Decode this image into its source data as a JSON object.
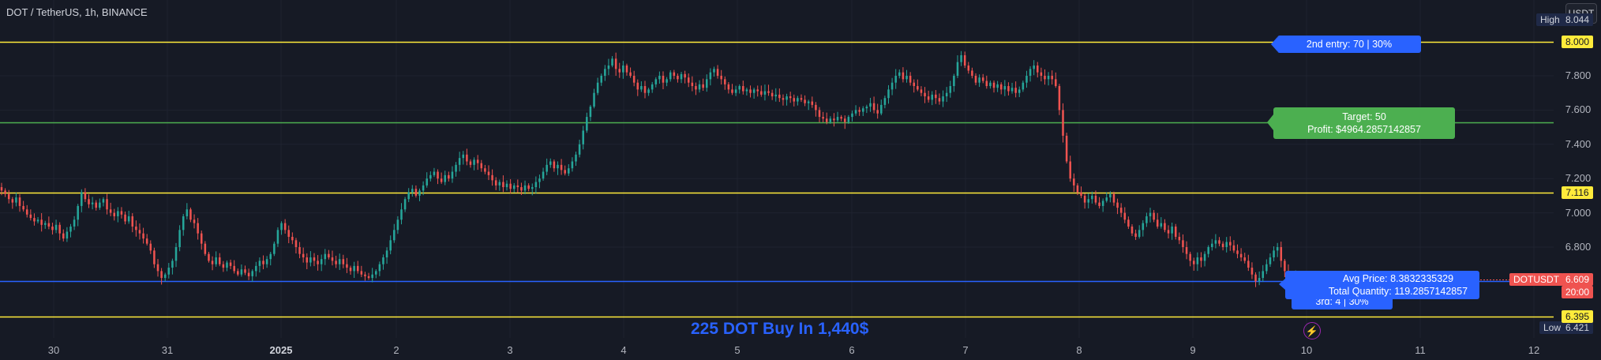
{
  "header": {
    "title": "DOT / TetherUS, 1h, BINANCE"
  },
  "currency_button": "USDT",
  "caption": "225 DOT Buy In 1,440$",
  "colors": {
    "background": "#161a25",
    "up": "#26a69a",
    "down": "#ef5350",
    "yellow": "#ffeb3b",
    "green": "#4caf50",
    "blue": "#2962ff"
  },
  "chart_data": {
    "type": "candlestick",
    "symbol": "DOT / TetherUS",
    "interval": "1h",
    "exchange": "BINANCE",
    "x_ticks": [
      "30",
      "31",
      "2025",
      "2",
      "3",
      "4",
      "5",
      "6",
      "7",
      "8",
      "9",
      "10",
      "11",
      "12"
    ],
    "y_ticks": [
      "7.800",
      "7.600",
      "7.400",
      "7.200",
      "7.000",
      "6.800"
    ],
    "ylim": [
      6.3,
      8.1
    ],
    "close_series": {
      "x_start": "2024-12-29 14:00",
      "step_hours": 1,
      "values": [
        7.13,
        7.11,
        7.08,
        7.06,
        7.09,
        7.04,
        7.02,
        6.99,
        6.97,
        6.95,
        6.96,
        6.93,
        6.94,
        6.92,
        6.9,
        6.93,
        6.88,
        6.85,
        6.89,
        6.92,
        6.96,
        7.04,
        7.12,
        7.08,
        7.05,
        7.06,
        7.03,
        7.06,
        7.08,
        7.02,
        7.0,
        6.98,
        7.01,
        6.99,
        6.95,
        6.98,
        6.92,
        6.9,
        6.88,
        6.85,
        6.82,
        6.78,
        6.7,
        6.66,
        6.62,
        6.64,
        6.68,
        6.72,
        6.8,
        6.9,
        6.98,
        7.02,
        6.96,
        6.94,
        6.88,
        6.82,
        6.76,
        6.72,
        6.7,
        6.74,
        6.7,
        6.68,
        6.71,
        6.69,
        6.66,
        6.64,
        6.67,
        6.65,
        6.63,
        6.66,
        6.69,
        6.72,
        6.7,
        6.73,
        6.76,
        6.82,
        6.9,
        6.94,
        6.9,
        6.86,
        6.84,
        6.8,
        6.76,
        6.74,
        6.71,
        6.74,
        6.72,
        6.7,
        6.73,
        6.76,
        6.74,
        6.72,
        6.7,
        6.73,
        6.7,
        6.68,
        6.66,
        6.69,
        6.66,
        6.64,
        6.63,
        6.62,
        6.64,
        6.66,
        6.7,
        6.74,
        6.78,
        6.84,
        6.9,
        6.96,
        7.02,
        7.08,
        7.12,
        7.14,
        7.1,
        7.13,
        7.16,
        7.2,
        7.22,
        7.24,
        7.2,
        7.18,
        7.22,
        7.2,
        7.24,
        7.28,
        7.32,
        7.34,
        7.3,
        7.28,
        7.31,
        7.29,
        7.26,
        7.24,
        7.22,
        7.19,
        7.16,
        7.18,
        7.15,
        7.17,
        7.14,
        7.16,
        7.15,
        7.13,
        7.16,
        7.14,
        7.15,
        7.18,
        7.2,
        7.24,
        7.28,
        7.3,
        7.26,
        7.28,
        7.25,
        7.23,
        7.26,
        7.3,
        7.34,
        7.4,
        7.48,
        7.56,
        7.62,
        7.7,
        7.76,
        7.8,
        7.84,
        7.86,
        7.9,
        7.84,
        7.82,
        7.86,
        7.82,
        7.8,
        7.76,
        7.72,
        7.74,
        7.7,
        7.72,
        7.75,
        7.78,
        7.8,
        7.76,
        7.78,
        7.82,
        7.8,
        7.78,
        7.81,
        7.79,
        7.76,
        7.74,
        7.72,
        7.75,
        7.73,
        7.78,
        7.82,
        7.84,
        7.8,
        7.78,
        7.75,
        7.72,
        7.7,
        7.72,
        7.74,
        7.71,
        7.72,
        7.7,
        7.72,
        7.71,
        7.69,
        7.71,
        7.7,
        7.68,
        7.69,
        7.67,
        7.66,
        7.68,
        7.67,
        7.65,
        7.67,
        7.66,
        7.64,
        7.65,
        7.63,
        7.6,
        7.56,
        7.55,
        7.53,
        7.55,
        7.54,
        7.56,
        7.55,
        7.53,
        7.56,
        7.58,
        7.6,
        7.59,
        7.61,
        7.62,
        7.64,
        7.6,
        7.58,
        7.63,
        7.67,
        7.72,
        7.76,
        7.8,
        7.82,
        7.78,
        7.8,
        7.76,
        7.74,
        7.72,
        7.7,
        7.68,
        7.66,
        7.69,
        7.67,
        7.65,
        7.68,
        7.7,
        7.74,
        7.8,
        7.88,
        7.92,
        7.86,
        7.83,
        7.8,
        7.76,
        7.79,
        7.77,
        7.74,
        7.76,
        7.73,
        7.75,
        7.72,
        7.74,
        7.71,
        7.73,
        7.7,
        7.72,
        7.76,
        7.8,
        7.84,
        7.86,
        7.82,
        7.8,
        7.78,
        7.8,
        7.78,
        7.74,
        7.6,
        7.45,
        7.3,
        7.2,
        7.16,
        7.12,
        7.1,
        7.06,
        7.08,
        7.1,
        7.06,
        7.04,
        7.07,
        7.09,
        7.11,
        7.06,
        7.03,
        7.0,
        6.96,
        6.92,
        6.88,
        6.86,
        6.9,
        6.94,
        6.98,
        7.0,
        6.96,
        6.92,
        6.94,
        6.9,
        6.88,
        6.92,
        6.86,
        6.84,
        6.8,
        6.76,
        6.72,
        6.7,
        6.74,
        6.72,
        6.76,
        6.8,
        6.82,
        6.84,
        6.82,
        6.8,
        6.83,
        6.81,
        6.78,
        6.76,
        6.74,
        6.72,
        6.68,
        6.64,
        6.6,
        6.62,
        6.66,
        6.7,
        6.74,
        6.78,
        6.8,
        6.72,
        6.66,
        6.62,
        6.6,
        6.63,
        6.61,
        6.6,
        6.61
      ]
    },
    "horizontal_lines": [
      {
        "price": 8.0,
        "color": "#ffeb3b",
        "label": "8.000"
      },
      {
        "price": 7.53,
        "color": "#4caf50"
      },
      {
        "price": 7.116,
        "color": "#ffeb3b",
        "label": "7.116"
      },
      {
        "price": 6.6,
        "color": "#2962ff"
      },
      {
        "price": 6.395,
        "color": "#ffeb3b",
        "label": "6.395"
      }
    ],
    "last_price": {
      "price": 6.609,
      "label": "6.609",
      "symbol": "DOTUSDT",
      "countdown": "20:00"
    },
    "high": {
      "label": "High",
      "value": "8.044",
      "price": 8.044
    },
    "low": {
      "label": "Low",
      "value": "6.421",
      "price": 6.421
    },
    "annotations": {
      "second_entry": "2nd entry: 70 | 30%",
      "target": [
        "Target: 50",
        "Profit: $4964.2857142857"
      ],
      "avg": [
        "Avg Price: 8.3832335329",
        "Total Quantity: 119.2857142857"
      ],
      "third_entry": "3rd: 4 | 30%"
    }
  }
}
